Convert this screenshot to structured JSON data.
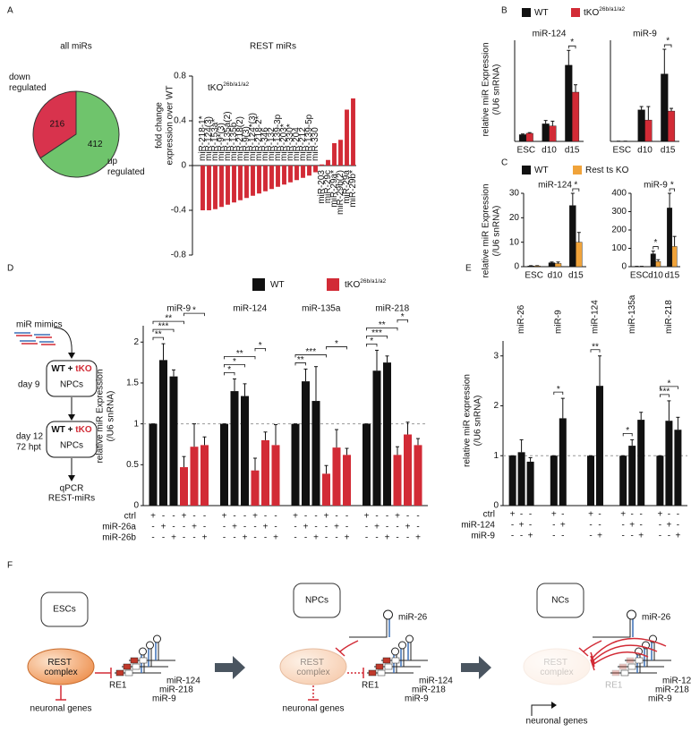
{
  "panel_labels": [
    "A",
    "B",
    "C",
    "D",
    "E",
    "F"
  ],
  "chart_data": [
    {
      "type": "pie",
      "title": "all miRs",
      "categories": [
        "down regulated",
        "up regulated"
      ],
      "values": [
        216,
        412
      ],
      "colors": [
        "#d8334d",
        "#6fc46c"
      ]
    },
    {
      "type": "bar",
      "title": "REST miRs",
      "annotation": {
        "text": "tKO",
        "superscript": "26b/a1/a2"
      },
      "ylabel": [
        "fold change",
        "expression over WT"
      ],
      "categories": [
        "miR-218-1*",
        "miR-124(3)",
        "miR-153a*",
        "miR-9*(3)",
        "miR-135a(2)",
        "miR-135b",
        "miR-218(2)",
        "miR-9(3)",
        "miR-124*(3)",
        "miR-218-2*",
        "miR-346",
        "miR-132",
        "miR-139-3p",
        "miR-203*",
        "miR-330*",
        "miR-204",
        "miR-212",
        "miR-139-5p",
        "miR-330",
        "miR-203",
        "miR-29c",
        "miR-29a*",
        "miR-29b(2)",
        "miR-29a",
        "miR-29b*"
      ],
      "values": [
        -0.4,
        -0.4,
        -0.39,
        -0.37,
        -0.35,
        -0.33,
        -0.31,
        -0.29,
        -0.27,
        -0.25,
        -0.23,
        -0.21,
        -0.19,
        -0.17,
        -0.15,
        -0.13,
        -0.11,
        -0.09,
        -0.06,
        0.01,
        0.05,
        0.2,
        0.23,
        0.5,
        0.6
      ],
      "color": "#d22b36",
      "ylim": [
        -0.8,
        0.8
      ],
      "yticks": [
        -0.8,
        -0.4,
        0,
        0.4,
        0.8
      ]
    },
    {
      "type": "multibar",
      "series": [
        {
          "name": "WT",
          "color": "#111111"
        },
        {
          "name": "tKO",
          "superscript": "26b/a1/a2",
          "color": "#d22b36"
        }
      ],
      "ylabel": [
        "relative miR Expression",
        "(/U6 snRNA)"
      ],
      "categories": [
        "ESC",
        "d10",
        "d15"
      ],
      "subplots": [
        {
          "title": "miR-124",
          "ylim": [
            0,
            15
          ],
          "values": [
            [
              1,
              2.6,
              11.3
            ],
            [
              1.2,
              2.3,
              7.3
            ]
          ],
          "errors": [
            [
              0.1,
              0.5,
              2.2
            ],
            [
              0.1,
              0.7,
              1.1
            ]
          ],
          "annotations": [
            {
              "text": "*",
              "category": 2
            }
          ]
        },
        {
          "title": "miR-9",
          "ylim": [
            0,
            450
          ],
          "values": [
            [
              1,
              140,
              300
            ],
            [
              1,
              95,
              135
            ]
          ],
          "errors": [
            [
              0,
              15,
              110
            ],
            [
              0,
              60,
              12
            ]
          ],
          "annotations": [
            {
              "text": "*",
              "category": 2
            }
          ]
        }
      ]
    },
    {
      "type": "multibar",
      "series": [
        {
          "name": "WT",
          "color": "#111111"
        },
        {
          "name": "Rest ts KO",
          "color": "#f0a33a"
        }
      ],
      "ylabel": [
        "relative miR Expression",
        "(/U6 snRNA)"
      ],
      "categories": [
        "ESC",
        "d10",
        "d15"
      ],
      "subplots": [
        {
          "title": "miR-124",
          "ylim": [
            0,
            30
          ],
          "yticks": [
            0,
            10,
            20,
            30
          ],
          "values": [
            [
              0.3,
              1.6,
              25
            ],
            [
              0.3,
              1.3,
              10
            ]
          ],
          "errors": [
            [
              0.1,
              0.3,
              5
            ],
            [
              0.1,
              0.6,
              4
            ]
          ],
          "annotations": [
            {
              "text": "*",
              "category": 2
            }
          ]
        },
        {
          "title": "miR-9",
          "ylim": [
            0,
            400
          ],
          "yticks": [
            0,
            100,
            200,
            300,
            400
          ],
          "values": [
            [
              1,
              70,
              320
            ],
            [
              1,
              28,
              110
            ]
          ],
          "errors": [
            [
              1,
              15,
              80
            ],
            [
              1,
              10,
              55
            ]
          ],
          "annotations": [
            {
              "text": "*",
              "category": 1
            },
            {
              "text": "*",
              "category": 2
            }
          ]
        }
      ]
    },
    {
      "type": "groupbar",
      "series": [
        {
          "name": "WT",
          "color": "#111111"
        },
        {
          "name": "tKO",
          "superscript": "26b/a1/a2",
          "color": "#d22b36"
        }
      ],
      "ylabel": [
        "relative miR Expression",
        "(/U6 snRNA)"
      ],
      "ylim": [
        0,
        2.2
      ],
      "yticks": [
        0,
        0.5,
        1,
        1.5,
        2
      ],
      "reference_line": 1,
      "groups": [
        {
          "title": "miR-9",
          "values": [
            [
              1,
              1.78,
              1.58
            ],
            [
              0.47,
              0.72,
              0.74
            ]
          ],
          "errors": [
            [
              0,
              0.2,
              0.08
            ],
            [
              0.13,
              0.28,
              0.1
            ]
          ],
          "brackets": [
            {
              "text": "**",
              "bars": [
                0,
                1
              ]
            },
            {
              "text": "***",
              "bars": [
                0,
                2
              ]
            },
            {
              "text": "**",
              "bars": [
                0,
                3
              ]
            },
            {
              "text": "*",
              "bars": [
                3,
                5
              ]
            }
          ]
        },
        {
          "title": "miR-124",
          "values": [
            [
              1,
              1.4,
              1.34
            ],
            [
              0.43,
              0.8,
              0.74
            ]
          ],
          "errors": [
            [
              0,
              0.15,
              0.15
            ],
            [
              0.15,
              0.1,
              0.25
            ]
          ],
          "brackets": [
            {
              "text": "*",
              "bars": [
                0,
                1
              ]
            },
            {
              "text": "*",
              "bars": [
                0,
                2
              ]
            },
            {
              "text": "**",
              "bars": [
                0,
                3
              ]
            },
            {
              "text": "*",
              "bars": [
                3,
                4
              ]
            }
          ]
        },
        {
          "title": "miR-135a",
          "values": [
            [
              1,
              1.52,
              1.28
            ],
            [
              0.39,
              0.71,
              0.62
            ]
          ],
          "errors": [
            [
              0,
              0.15,
              0.42
            ],
            [
              0.1,
              0.22,
              0.08
            ]
          ],
          "brackets": [
            {
              "text": "**",
              "bars": [
                0,
                1
              ]
            },
            {
              "text": "***",
              "bars": [
                0,
                3
              ]
            },
            {
              "text": "*",
              "bars": [
                3,
                5
              ]
            }
          ]
        },
        {
          "title": "miR-218",
          "values": [
            [
              1,
              1.65,
              1.75
            ],
            [
              0.62,
              0.87,
              0.74
            ]
          ],
          "errors": [
            [
              0,
              0.25,
              0.08
            ],
            [
              0.1,
              0.15,
              0.08
            ]
          ],
          "brackets": [
            {
              "text": "*",
              "bars": [
                0,
                1
              ]
            },
            {
              "text": "***",
              "bars": [
                0,
                2
              ]
            },
            {
              "text": "**",
              "bars": [
                0,
                3
              ]
            },
            {
              "text": "*",
              "bars": [
                3,
                4
              ]
            }
          ]
        }
      ],
      "conditions": [
        {
          "name": "ctrl",
          "marks": [
            "+",
            "-",
            "-",
            "+",
            "-",
            "-",
            "+",
            "-",
            "-",
            "+",
            "-",
            "-",
            "+",
            "-",
            "-",
            "+",
            "-",
            "-",
            "+",
            "-",
            "-",
            "+",
            "-",
            "-"
          ]
        },
        {
          "name": "miR-26a",
          "marks": [
            "-",
            "+",
            "-",
            "-",
            "+",
            "-",
            "-",
            "+",
            "-",
            "-",
            "+",
            "-",
            "-",
            "+",
            "-",
            "-",
            "+",
            "-",
            "-",
            "+",
            "-",
            "-",
            "+",
            "-"
          ]
        },
        {
          "name": "miR-26b",
          "marks": [
            "-",
            "-",
            "+",
            "-",
            "-",
            "+",
            "-",
            "-",
            "+",
            "-",
            "-",
            "+",
            "-",
            "-",
            "+",
            "-",
            "-",
            "+",
            "-",
            "-",
            "+",
            "-",
            "-",
            "+"
          ]
        }
      ]
    },
    {
      "type": "groupbar",
      "group_labels_vertical": true,
      "series": [
        {
          "color": "#111111"
        }
      ],
      "ylabel": [
        "relative miR expression",
        "(/U6 snRNA)"
      ],
      "ylim": [
        0,
        3.3
      ],
      "yticks": [
        0,
        1,
        2,
        3
      ],
      "reference_line": 1,
      "groups": [
        {
          "title": "miR-26",
          "values": [
            [
              1,
              1.07,
              0.88
            ]
          ],
          "errors": [
            [
              0,
              0.25,
              0.08
            ]
          ],
          "brackets": []
        },
        {
          "title": "miR-9",
          "values": [
            [
              1,
              1.75
            ]
          ],
          "errors": [
            [
              0,
              0.4
            ]
          ],
          "brackets": [
            {
              "text": "*",
              "bars": [
                0,
                1
              ]
            }
          ]
        },
        {
          "title": "miR-124",
          "values": [
            [
              1,
              2.4
            ]
          ],
          "errors": [
            [
              0,
              0.6
            ]
          ],
          "brackets": [
            {
              "text": "**",
              "bars": [
                0,
                1
              ]
            }
          ]
        },
        {
          "title": "miR-135a",
          "values": [
            [
              1,
              1.2,
              1.72
            ]
          ],
          "errors": [
            [
              0,
              0.12,
              0.15
            ]
          ],
          "brackets": [
            {
              "text": "*",
              "bars": [
                0,
                1
              ]
            }
          ]
        },
        {
          "title": "miR-218",
          "values": [
            [
              1,
              1.7,
              1.52
            ]
          ],
          "errors": [
            [
              0,
              0.4,
              0.25
            ]
          ],
          "brackets": [
            {
              "text": "***",
              "bars": [
                0,
                1
              ]
            },
            {
              "text": "*",
              "bars": [
                0,
                2
              ]
            }
          ]
        }
      ],
      "conditions": [
        {
          "name": "ctrl",
          "marks": [
            "+",
            "-",
            "-",
            "+",
            "-",
            "+",
            "-",
            "+",
            "-",
            "-",
            "+",
            "-",
            "-"
          ]
        },
        {
          "name": "miR-124",
          "marks": [
            "-",
            "+",
            "-",
            "-",
            "+",
            "-",
            "-",
            "-",
            "+",
            "-",
            "-",
            "+",
            "-"
          ]
        },
        {
          "name": "miR-9",
          "marks": [
            "-",
            "-",
            "+",
            "-",
            "-",
            "-",
            "+",
            "-",
            "-",
            "+",
            "-",
            "-",
            "+"
          ]
        }
      ]
    }
  ],
  "schematic_D": {
    "mimics": "miR mimics",
    "box_top": [
      "WT",
      "+",
      "tKO"
    ],
    "boxes": [
      {
        "day": "day 9",
        "label": "NPCs"
      },
      {
        "day": "day 12",
        "extra": "72 hpt",
        "label": "NPCs"
      }
    ],
    "readout": [
      "qPCR",
      "REST-miRs"
    ]
  },
  "diagram_F": {
    "stages": [
      "ESCs",
      "NPCs",
      "NCs"
    ],
    "rest_complex": "REST complex",
    "neuronal_genes": "neuronal genes",
    "re1": "RE1",
    "mirs": [
      "miR-124",
      "miR-218",
      "miR-9"
    ],
    "mir26": "miR-26"
  }
}
